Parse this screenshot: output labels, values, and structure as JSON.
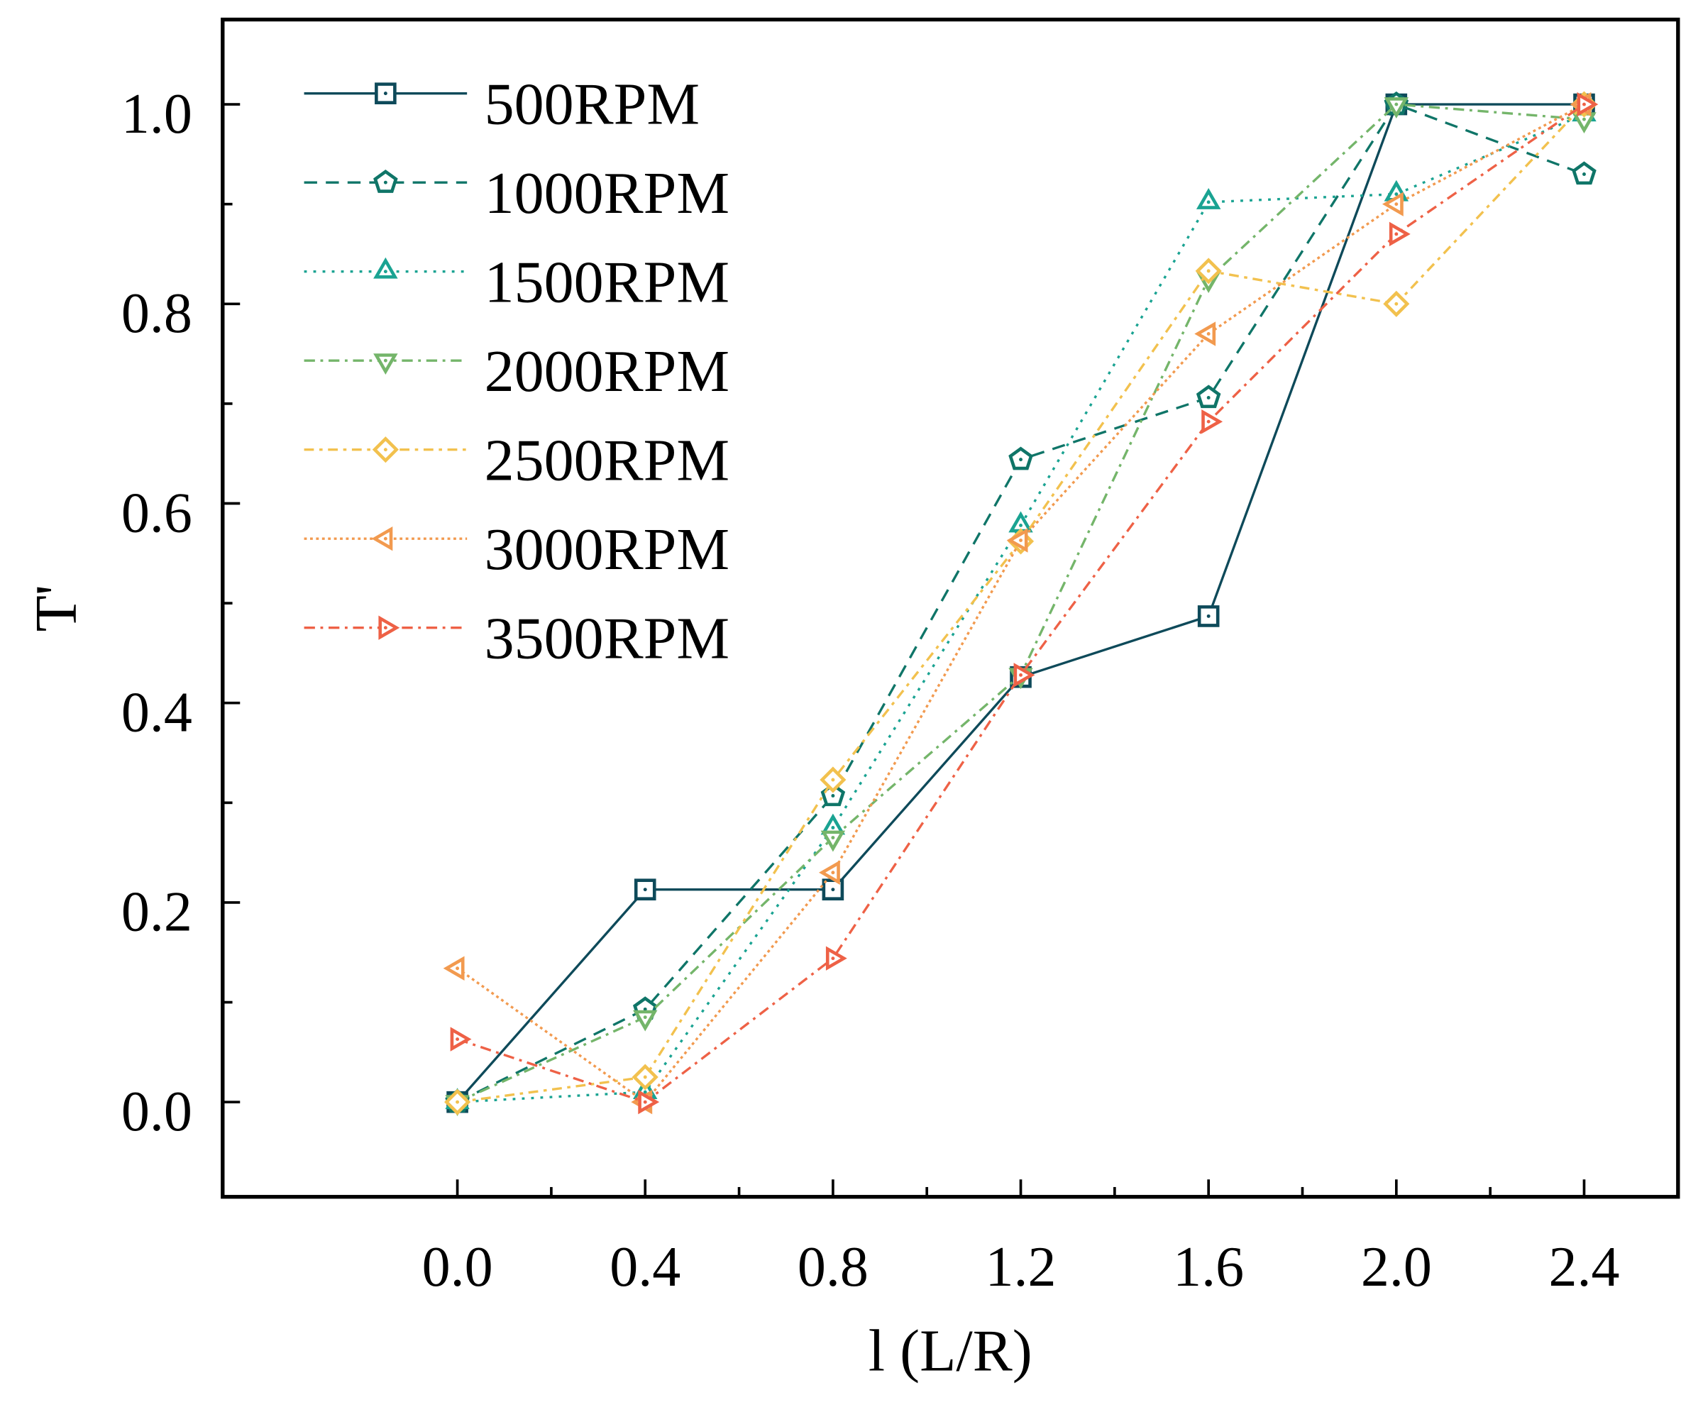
{
  "chart_data": {
    "type": "line",
    "title": "",
    "xlabel": "l (L/R)",
    "ylabel": "T'",
    "xlim": [
      -0.5,
      2.6
    ],
    "ylim": [
      -0.095,
      1.085
    ],
    "x": [
      0.0,
      0.4,
      0.8,
      1.2,
      1.6,
      2.0,
      2.4
    ],
    "x_ticks": [
      "0.0",
      "0.4",
      "0.8",
      "1.2",
      "1.6",
      "2.0",
      "2.4"
    ],
    "y_ticks": [
      "0.0",
      "0.2",
      "0.4",
      "0.6",
      "0.8",
      "1.0"
    ],
    "grid": false,
    "legend_position": "top-left",
    "series": [
      {
        "name": "500RPM",
        "marker": "square",
        "dash": "solid",
        "color": "#0e4a5a",
        "values": [
          0.0,
          0.213,
          0.213,
          0.426,
          0.487,
          1.0,
          1.0
        ]
      },
      {
        "name": "1000RPM",
        "marker": "pentagon",
        "dash": "dash",
        "color": "#0f7568",
        "values": [
          0.0,
          0.093,
          0.307,
          0.644,
          0.706,
          1.0,
          0.93
        ]
      },
      {
        "name": "1500RPM",
        "marker": "triangle-up",
        "dash": "dot",
        "color": "#1aa392",
        "values": [
          0.0,
          0.01,
          0.275,
          0.578,
          0.902,
          0.91,
          0.99
        ]
      },
      {
        "name": "2000RPM",
        "marker": "triangle-down",
        "dash": "dashdot",
        "color": "#74b56a",
        "values": [
          0.0,
          0.085,
          0.265,
          0.428,
          0.825,
          1.0,
          0.985
        ]
      },
      {
        "name": "2500RPM",
        "marker": "diamond",
        "dash": "dashdotlong",
        "color": "#f2c14e",
        "values": [
          0.0,
          0.025,
          0.323,
          0.562,
          0.833,
          0.8,
          1.0
        ]
      },
      {
        "name": "3000RPM",
        "marker": "triangle-left",
        "dash": "densedot",
        "color": "#f29a4f",
        "values": [
          0.134,
          0.0,
          0.23,
          0.563,
          0.77,
          0.9,
          1.0
        ]
      },
      {
        "name": "3500RPM",
        "marker": "triangle-right",
        "dash": "dashdot",
        "color": "#ee6146",
        "values": [
          0.063,
          0.0,
          0.144,
          0.428,
          0.682,
          0.87,
          1.0
        ]
      }
    ]
  }
}
